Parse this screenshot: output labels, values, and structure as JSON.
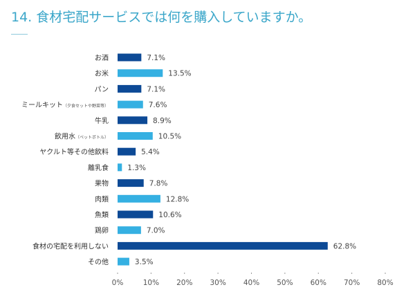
{
  "title": "14. 食材宅配サービスでは何を購入していますか。",
  "colors": {
    "title": "#3aa6c9",
    "dark": "#0d4a96",
    "light": "#35b0e2"
  },
  "chart_data": {
    "type": "bar",
    "orientation": "horizontal",
    "title": "14. 食材宅配サービスでは何を購入していますか。",
    "categories": [
      {
        "label": "お酒",
        "note": ""
      },
      {
        "label": "お米",
        "note": ""
      },
      {
        "label": "パン",
        "note": ""
      },
      {
        "label": "ミールキット",
        "note": "（夕食セットや野菜等）"
      },
      {
        "label": "牛乳",
        "note": ""
      },
      {
        "label": "飲用水",
        "note": "（ペットボトル）"
      },
      {
        "label": "ヤクルト等その他飲料",
        "note": ""
      },
      {
        "label": "離乳食",
        "note": ""
      },
      {
        "label": "果物",
        "note": ""
      },
      {
        "label": "肉類",
        "note": ""
      },
      {
        "label": "魚類",
        "note": ""
      },
      {
        "label": "鶏卵",
        "note": ""
      },
      {
        "label": "食材の宅配を利用しない",
        "note": ""
      },
      {
        "label": "その他",
        "note": ""
      }
    ],
    "values": [
      7.1,
      13.5,
      7.1,
      7.6,
      8.9,
      10.5,
      5.4,
      1.3,
      7.8,
      12.8,
      10.6,
      7.0,
      62.8,
      3.5
    ],
    "value_labels": [
      "7.1%",
      "13.5%",
      "7.1%",
      "7.6%",
      "8.9%",
      "10.5%",
      "5.4%",
      "1.3%",
      "7.8%",
      "12.8%",
      "10.6%",
      "7.0%",
      "62.8%",
      "3.5%"
    ],
    "xlim": [
      0,
      80
    ],
    "xticks": [
      "0%",
      "10%",
      "20%",
      "30%",
      "40%",
      "50%",
      "60%",
      "70%",
      "80%"
    ],
    "grid": false,
    "bar_colors": "alternating dark/light blue"
  }
}
